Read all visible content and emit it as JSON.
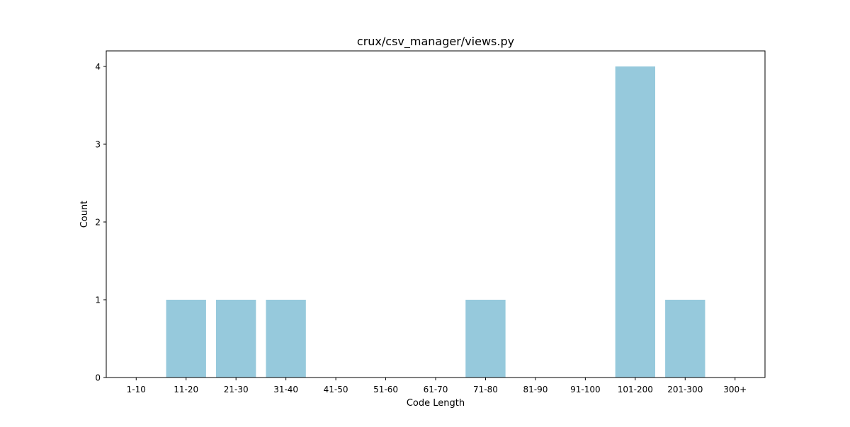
{
  "chart_data": {
    "type": "bar",
    "title": "crux/csv_manager/views.py",
    "xlabel": "Code Length",
    "ylabel": "Count",
    "categories": [
      "1-10",
      "11-20",
      "21-30",
      "31-40",
      "41-50",
      "51-60",
      "61-70",
      "71-80",
      "81-90",
      "91-100",
      "101-200",
      "201-300",
      "300+"
    ],
    "values": [
      0,
      1,
      1,
      1,
      0,
      0,
      0,
      1,
      0,
      0,
      4,
      1,
      0
    ],
    "ylim": [
      0,
      4.2
    ],
    "yticks": [
      0,
      1,
      2,
      3,
      4
    ],
    "grid": false,
    "bar_color": "#96c9dc"
  }
}
